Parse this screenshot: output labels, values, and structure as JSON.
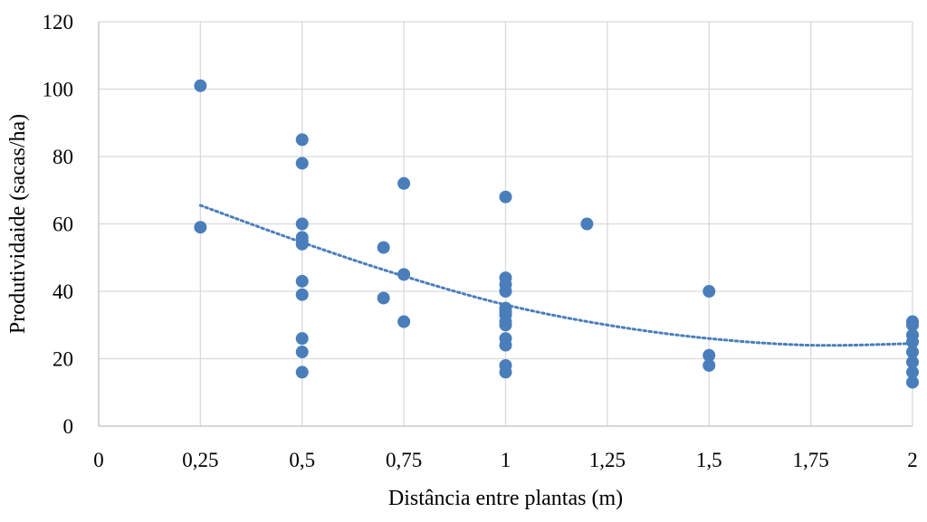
{
  "chart_data": {
    "type": "scatter",
    "title": "",
    "xlabel": "Distância entre plantas (m)",
    "ylabel": "Produtividaide (sacas/ha)",
    "xlim": [
      0,
      2
    ],
    "ylim": [
      0,
      120
    ],
    "x_ticks": [
      0,
      0.25,
      0.5,
      0.75,
      1,
      1.25,
      1.5,
      1.75,
      2
    ],
    "x_tick_labels": [
      "0",
      "0,25",
      "0,5",
      "0,75",
      "1",
      "1,25",
      "1,5",
      "1,75",
      "2"
    ],
    "y_ticks": [
      0,
      20,
      40,
      60,
      80,
      100,
      120
    ],
    "y_tick_labels": [
      "0",
      "20",
      "40",
      "60",
      "80",
      "100",
      "120"
    ],
    "grid": true,
    "legend": "none",
    "marker_color": "#4a7ebb",
    "series": [
      {
        "points": [
          [
            0.25,
            101
          ],
          [
            0.25,
            59
          ],
          [
            0.5,
            85
          ],
          [
            0.5,
            78
          ],
          [
            0.5,
            60
          ],
          [
            0.5,
            56
          ],
          [
            0.5,
            55
          ],
          [
            0.5,
            54
          ],
          [
            0.5,
            43
          ],
          [
            0.5,
            39
          ],
          [
            0.5,
            26
          ],
          [
            0.5,
            22
          ],
          [
            0.5,
            16
          ],
          [
            0.7,
            53
          ],
          [
            0.7,
            38
          ],
          [
            0.75,
            72
          ],
          [
            0.75,
            45
          ],
          [
            0.75,
            31
          ],
          [
            1,
            68
          ],
          [
            1,
            44
          ],
          [
            1,
            42
          ],
          [
            1,
            40
          ],
          [
            1,
            35
          ],
          [
            1,
            34
          ],
          [
            1,
            33
          ],
          [
            1,
            31
          ],
          [
            1,
            30
          ],
          [
            1,
            26
          ],
          [
            1,
            24
          ],
          [
            1,
            18
          ],
          [
            1,
            16
          ],
          [
            1.2,
            60
          ],
          [
            1.5,
            40
          ],
          [
            1.5,
            21
          ],
          [
            1.5,
            18
          ],
          [
            2,
            31
          ],
          [
            2,
            30
          ],
          [
            2,
            27
          ],
          [
            2,
            25
          ],
          [
            2,
            22
          ],
          [
            2,
            19
          ],
          [
            2,
            16
          ],
          [
            2,
            13
          ]
        ]
      }
    ],
    "trendline": {
      "type": "polynomial",
      "style": "dotted",
      "color": "#4a7ebb",
      "points": [
        [
          0.25,
          65.5
        ],
        [
          0.5,
          54.5
        ],
        [
          0.75,
          44.5
        ],
        [
          1,
          36
        ],
        [
          1.25,
          30
        ],
        [
          1.5,
          26
        ],
        [
          1.75,
          24
        ],
        [
          2,
          24.5
        ]
      ]
    }
  }
}
